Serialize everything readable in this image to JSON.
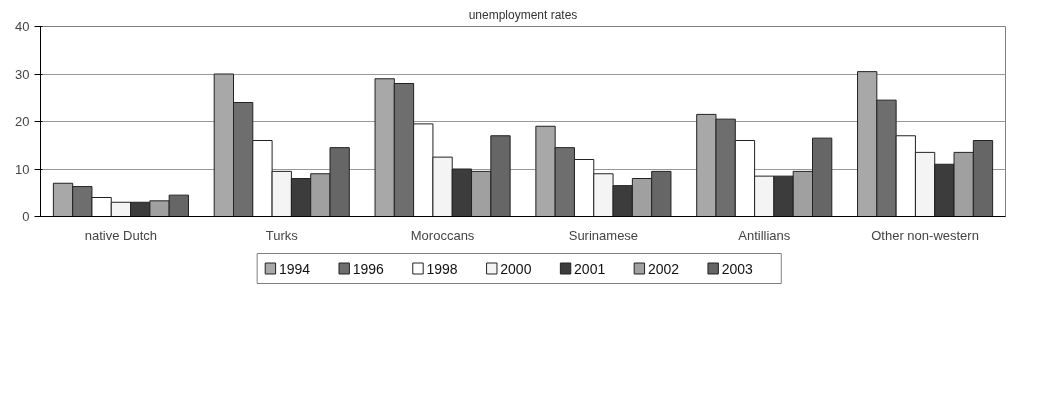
{
  "chart_data": {
    "type": "bar",
    "title": "unemployment rates",
    "categories": [
      "native Dutch",
      "Turks",
      "Moroccans",
      "Surinamese",
      "Antillians",
      "Other non-western"
    ],
    "series": [
      {
        "name": "1994",
        "color": "#a8a8a8",
        "values": [
          7,
          30,
          29,
          19,
          21.5,
          30.5
        ]
      },
      {
        "name": "1996",
        "color": "#6e6e6e",
        "values": [
          6.3,
          24,
          28,
          14.5,
          20.5,
          24.5
        ]
      },
      {
        "name": "1998",
        "color": "#ffffff",
        "values": [
          4,
          16,
          19.5,
          12,
          16,
          17
        ]
      },
      {
        "name": "2000",
        "color": "#f4f4f4",
        "values": [
          3,
          9.5,
          12.5,
          9,
          8.5,
          13.5
        ]
      },
      {
        "name": "2001",
        "color": "#3c3c3c",
        "values": [
          3,
          8,
          10,
          6.5,
          8.5,
          11
        ]
      },
      {
        "name": "2002",
        "color": "#a0a0a0",
        "values": [
          3.3,
          9,
          9.5,
          8,
          9.5,
          13.5
        ]
      },
      {
        "name": "2003",
        "color": "#666666",
        "values": [
          4.5,
          14.5,
          17,
          9.5,
          16.5,
          16
        ]
      }
    ],
    "ylim": [
      0,
      40
    ],
    "yticks": [
      0,
      10,
      20,
      30,
      40
    ],
    "grid": "y",
    "legend": "bottom"
  }
}
